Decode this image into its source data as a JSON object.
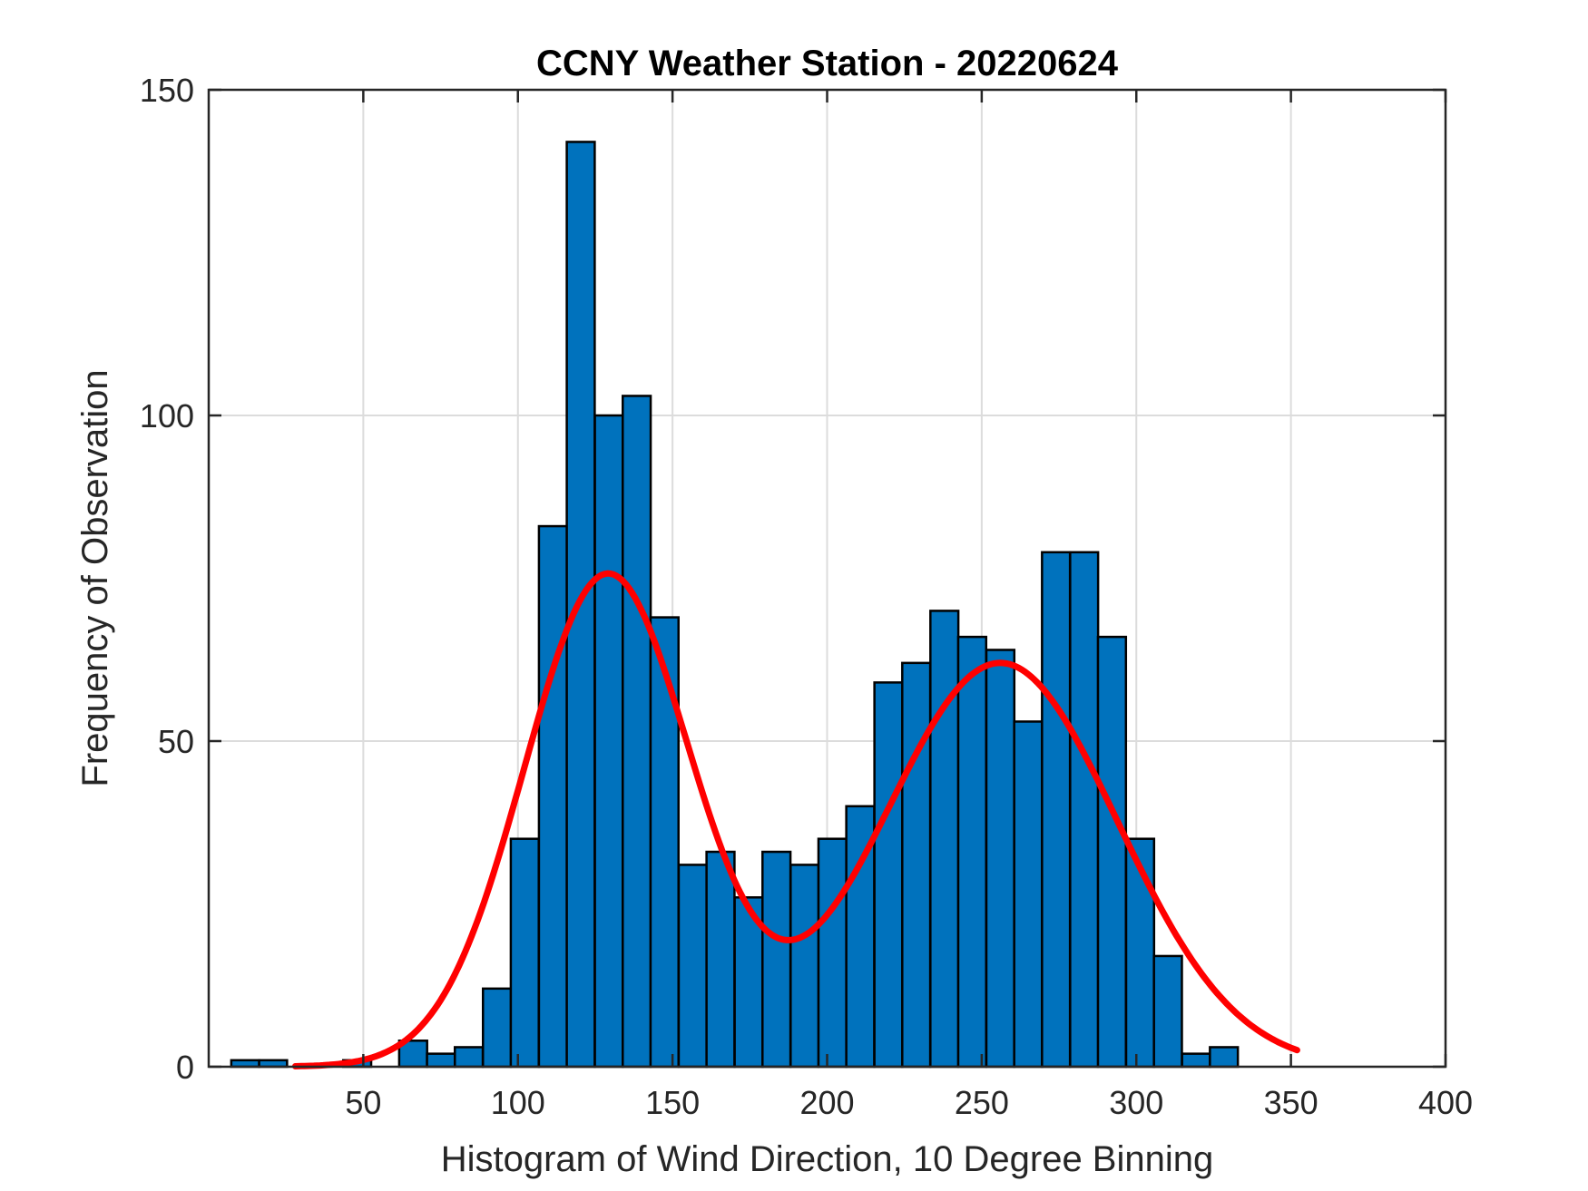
{
  "chart_data": {
    "type": "bar",
    "title": "CCNY Weather Station - 20220624",
    "xlabel": "Histogram of Wind Direction, 10 Degree Binning",
    "ylabel": "Frequency of Observation",
    "xlim": [
      0,
      400
    ],
    "ylim": [
      0,
      150
    ],
    "xticks": [
      50,
      100,
      150,
      200,
      250,
      300,
      350,
      400
    ],
    "yticks": [
      0,
      50,
      100,
      150
    ],
    "grid": true,
    "bar_color": "#0072BD",
    "curve_color": "#FF0000",
    "bin_width": 9.04,
    "bins": [
      {
        "x_start": 7.3,
        "count": 1
      },
      {
        "x_start": 16.3,
        "count": 1
      },
      {
        "x_start": 25.4,
        "count": 0
      },
      {
        "x_start": 34.4,
        "count": 0
      },
      {
        "x_start": 43.5,
        "count": 1
      },
      {
        "x_start": 52.5,
        "count": 0
      },
      {
        "x_start": 61.6,
        "count": 4
      },
      {
        "x_start": 70.6,
        "count": 2
      },
      {
        "x_start": 79.6,
        "count": 3
      },
      {
        "x_start": 88.7,
        "count": 12
      },
      {
        "x_start": 97.7,
        "count": 35
      },
      {
        "x_start": 106.8,
        "count": 83
      },
      {
        "x_start": 115.8,
        "count": 142
      },
      {
        "x_start": 124.9,
        "count": 100
      },
      {
        "x_start": 133.9,
        "count": 103
      },
      {
        "x_start": 142.9,
        "count": 69
      },
      {
        "x_start": 152.0,
        "count": 31
      },
      {
        "x_start": 161.0,
        "count": 33
      },
      {
        "x_start": 170.1,
        "count": 26
      },
      {
        "x_start": 179.1,
        "count": 33
      },
      {
        "x_start": 188.2,
        "count": 31
      },
      {
        "x_start": 197.2,
        "count": 35
      },
      {
        "x_start": 206.2,
        "count": 40
      },
      {
        "x_start": 215.3,
        "count": 59
      },
      {
        "x_start": 224.3,
        "count": 62
      },
      {
        "x_start": 233.4,
        "count": 70
      },
      {
        "x_start": 242.4,
        "count": 66
      },
      {
        "x_start": 251.5,
        "count": 64
      },
      {
        "x_start": 260.5,
        "count": 53
      },
      {
        "x_start": 269.5,
        "count": 79
      },
      {
        "x_start": 278.6,
        "count": 79
      },
      {
        "x_start": 287.6,
        "count": 66
      },
      {
        "x_start": 296.7,
        "count": 35
      },
      {
        "x_start": 305.7,
        "count": 17
      },
      {
        "x_start": 314.8,
        "count": 2
      },
      {
        "x_start": 323.8,
        "count": 3
      }
    ],
    "fit_curve": {
      "type": "gaussian-mixture",
      "x_range": [
        28,
        352
      ],
      "components": [
        {
          "amplitude": 75.5,
          "mean": 129,
          "sigma": 27
        },
        {
          "amplitude": 62,
          "mean": 256,
          "sigma": 38
        }
      ]
    }
  }
}
